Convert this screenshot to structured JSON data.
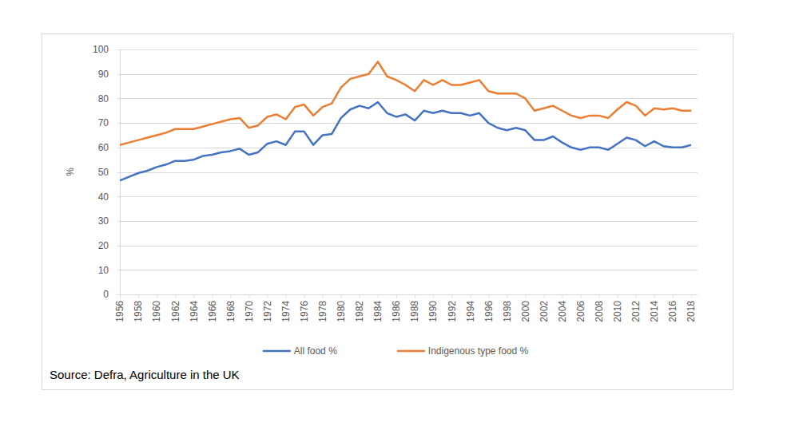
{
  "chart_data": {
    "type": "line",
    "y_label": "%",
    "source": "Source: Defra, Agriculture in the UK",
    "x": [
      1956,
      1957,
      1958,
      1959,
      1960,
      1961,
      1962,
      1963,
      1964,
      1965,
      1966,
      1967,
      1968,
      1969,
      1970,
      1971,
      1972,
      1973,
      1974,
      1975,
      1976,
      1977,
      1978,
      1979,
      1980,
      1981,
      1982,
      1983,
      1984,
      1985,
      1986,
      1987,
      1988,
      1989,
      1990,
      1991,
      1992,
      1993,
      1994,
      1995,
      1996,
      1997,
      1998,
      1999,
      2000,
      2001,
      2002,
      2003,
      2004,
      2005,
      2006,
      2007,
      2008,
      2009,
      2010,
      2011,
      2012,
      2013,
      2014,
      2015,
      2016,
      2017,
      2018
    ],
    "series": [
      {
        "name": "All food %",
        "color": "#4472c4",
        "values": [
          46.5,
          48,
          49.5,
          50.5,
          52,
          53,
          54.5,
          54.5,
          55,
          56.5,
          57,
          58,
          58.5,
          59.5,
          57,
          58,
          61.5,
          62.5,
          61,
          66.5,
          66.5,
          61,
          65,
          65.5,
          72,
          75.5,
          77,
          76,
          78.5,
          74,
          72.5,
          73.5,
          71,
          75,
          74,
          75,
          74,
          74,
          73,
          74,
          70,
          68,
          67,
          68,
          67,
          63,
          63,
          64.5,
          62,
          60,
          59,
          60,
          60,
          59,
          61.5,
          64,
          63,
          60.5,
          62.5,
          60.5,
          60,
          60,
          61
        ]
      },
      {
        "name": "Indigenous type food %",
        "color": "#ed7d31",
        "values": [
          61,
          62,
          63,
          64,
          65,
          66,
          67.5,
          67.5,
          67.5,
          68.5,
          69.5,
          70.5,
          71.5,
          72,
          68,
          69,
          72.5,
          73.5,
          71.5,
          76.5,
          77.5,
          73,
          76.5,
          78,
          84.5,
          88,
          89,
          90,
          95,
          89,
          87.5,
          85.5,
          83,
          87.5,
          85.5,
          87.5,
          85.5,
          85.5,
          86.5,
          87.5,
          83,
          82,
          82,
          82,
          80,
          75,
          76,
          77,
          75,
          73,
          72,
          73,
          73,
          72,
          75.5,
          78.5,
          77,
          73,
          76,
          75.5,
          76,
          75,
          75
        ]
      }
    ],
    "xlim": [
      1956,
      2018
    ],
    "xticks": [
      1956,
      1958,
      1960,
      1962,
      1964,
      1966,
      1968,
      1970,
      1972,
      1974,
      1976,
      1978,
      1980,
      1982,
      1984,
      1986,
      1988,
      1990,
      1992,
      1994,
      1996,
      1998,
      2000,
      2002,
      2004,
      2006,
      2008,
      2010,
      2012,
      2014,
      2016,
      2018
    ],
    "ylim": [
      0,
      100
    ],
    "yticks": [
      0,
      10,
      20,
      30,
      40,
      50,
      60,
      70,
      80,
      90,
      100
    ],
    "grid": true,
    "legend": "bottom"
  }
}
